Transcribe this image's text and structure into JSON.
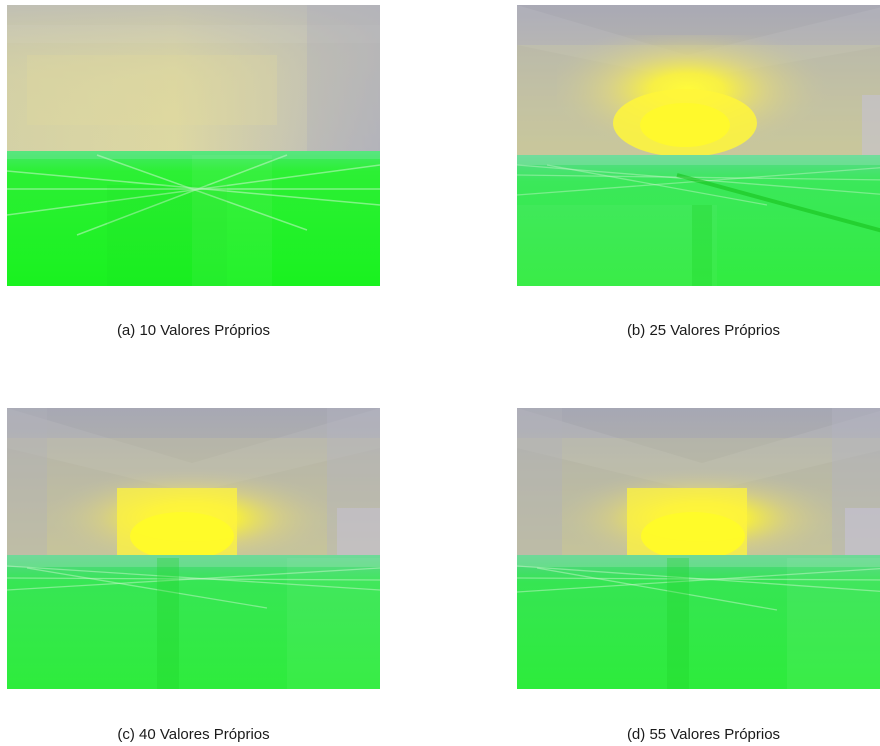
{
  "figures": [
    {
      "id": "a",
      "caption": "(a) 10 Valores Próprios",
      "glow_strength": 0.0
    },
    {
      "id": "b",
      "caption": "(b) 25 Valores Próprios",
      "glow_strength": 0.85
    },
    {
      "id": "c",
      "caption": "(c) 40 Valores Próprios",
      "glow_strength": 1.0
    },
    {
      "id": "d",
      "caption": "(d) 55 Valores Próprios",
      "glow_strength": 1.0
    }
  ],
  "colors": {
    "sky_gray": "#a9a9b6",
    "haze_yellow": "#d8d49a",
    "glow_yellow": "#fff53a",
    "floor_green": "#22f22a",
    "floor_green_dark": "#1fe62a",
    "horizon_green": "#3fe865"
  }
}
